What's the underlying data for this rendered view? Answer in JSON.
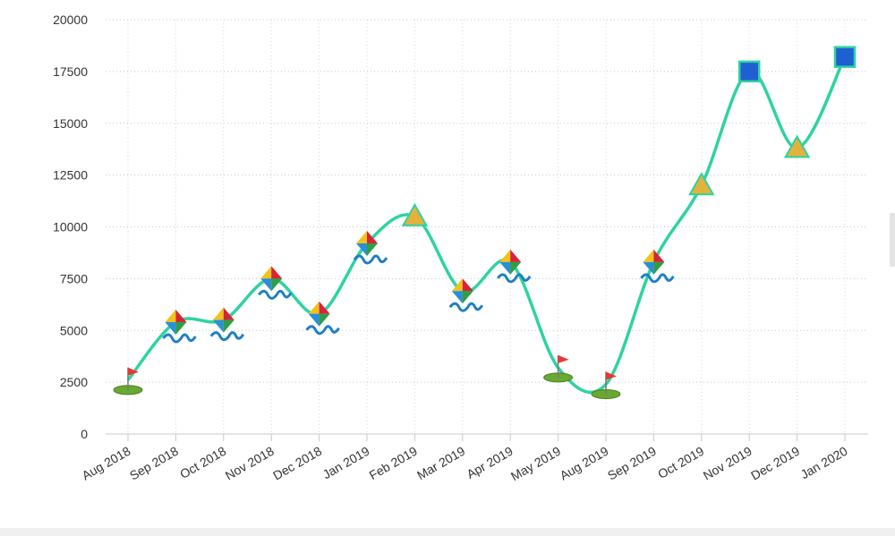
{
  "chart_data": {
    "type": "line",
    "categories": [
      "Aug 2018",
      "Sep 2018",
      "Oct 2018",
      "Nov 2018",
      "Dec 2018",
      "Jan 2019",
      "Feb 2019",
      "Mar 2019",
      "Apr 2019",
      "May 2019",
      "Aug 2019",
      "Sep 2019",
      "Oct 2019",
      "Nov 2019",
      "Dec 2019",
      "Jan 2020"
    ],
    "series": [
      {
        "color": "#2ed3a0",
        "values": [
          2600,
          5400,
          5500,
          7500,
          5800,
          9200,
          10500,
          6900,
          8300,
          3200,
          2400,
          8300,
          12000,
          17500,
          13800,
          18200
        ],
        "markers": [
          "flag",
          "kite",
          "kite",
          "kite",
          "kite",
          "kite",
          "triangle",
          "kite",
          "kite",
          "flag",
          "flag",
          "kite",
          "triangle",
          "square",
          "triangle",
          "square"
        ]
      }
    ],
    "ylim": [
      0,
      20000
    ],
    "yticks": [
      0,
      2500,
      5000,
      7500,
      10000,
      12500,
      15000,
      17500,
      20000
    ],
    "grid": true
  }
}
